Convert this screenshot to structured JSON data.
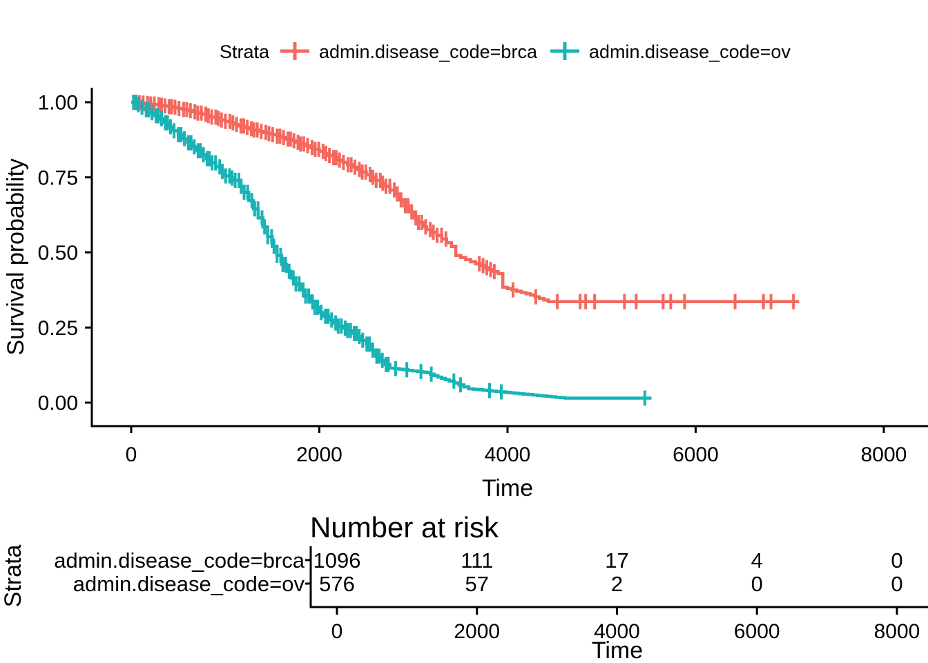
{
  "chart_data": {
    "type": "line",
    "subtype": "kaplan_meier_survival_step",
    "title": "",
    "legend_title": "Strata",
    "xlabel": "Time",
    "ylabel": "Survival probability",
    "xlim": [
      0,
      8000
    ],
    "ylim": [
      0,
      1
    ],
    "xticks": [
      0,
      2000,
      4000,
      6000,
      8000
    ],
    "xtick_labels": [
      "0",
      "2000",
      "4000",
      "6000",
      "8000"
    ],
    "yticks": [
      0,
      0.25,
      0.5,
      0.75,
      1
    ],
    "ytick_labels": [
      "0.00",
      "0.25",
      "0.50",
      "0.75",
      "1.00"
    ],
    "grid": false,
    "legend_position": "top",
    "axis_color": "#000000",
    "background": "#FFFFFF",
    "series": [
      {
        "name": "admin.disease_code=brca",
        "color": "#F4685E",
        "steps": [
          [
            0,
            1.0
          ],
          [
            150,
            0.996
          ],
          [
            300,
            0.99
          ],
          [
            450,
            0.983
          ],
          [
            600,
            0.972
          ],
          [
            750,
            0.96
          ],
          [
            900,
            0.946
          ],
          [
            1050,
            0.931
          ],
          [
            1200,
            0.916
          ],
          [
            1350,
            0.903
          ],
          [
            1500,
            0.892
          ],
          [
            1650,
            0.877
          ],
          [
            1800,
            0.861
          ],
          [
            1950,
            0.843
          ],
          [
            2100,
            0.823
          ],
          [
            2250,
            0.8
          ],
          [
            2400,
            0.776
          ],
          [
            2550,
            0.75
          ],
          [
            2700,
            0.72
          ],
          [
            2800,
            0.695
          ],
          [
            2900,
            0.655
          ],
          [
            3000,
            0.615
          ],
          [
            3100,
            0.585
          ],
          [
            3180,
            0.567
          ],
          [
            3250,
            0.557
          ],
          [
            3404,
            0.52
          ],
          [
            3450,
            0.49
          ],
          [
            3660,
            0.462
          ],
          [
            3900,
            0.43
          ],
          [
            3950,
            0.384
          ],
          [
            4245,
            0.358
          ],
          [
            4435,
            0.336
          ],
          [
            7100,
            0.336
          ]
        ],
        "censor_times": [
          3346,
          3700,
          3740,
          3780,
          3820,
          3860,
          4059,
          4300,
          4530,
          4772,
          4831,
          4926,
          5243,
          5368,
          5654,
          5735,
          5882,
          6419,
          6721,
          6801,
          7040
        ],
        "dense_censoring": {
          "from": 25,
          "to": 3300,
          "step": 38
        }
      },
      {
        "name": "admin.disease_code=ov",
        "color": "#19B3B6",
        "steps": [
          [
            0,
            1.0
          ],
          [
            150,
            0.975
          ],
          [
            300,
            0.945
          ],
          [
            450,
            0.905
          ],
          [
            600,
            0.865
          ],
          [
            750,
            0.825
          ],
          [
            900,
            0.785
          ],
          [
            1000,
            0.755
          ],
          [
            1100,
            0.74
          ],
          [
            1200,
            0.7
          ],
          [
            1300,
            0.645
          ],
          [
            1400,
            0.585
          ],
          [
            1500,
            0.52
          ],
          [
            1600,
            0.46
          ],
          [
            1700,
            0.415
          ],
          [
            1800,
            0.375
          ],
          [
            1900,
            0.335
          ],
          [
            2000,
            0.3
          ],
          [
            2100,
            0.275
          ],
          [
            2200,
            0.255
          ],
          [
            2300,
            0.24
          ],
          [
            2400,
            0.22
          ],
          [
            2500,
            0.195
          ],
          [
            2600,
            0.155
          ],
          [
            2700,
            0.127
          ],
          [
            2750,
            0.115
          ],
          [
            3140,
            0.1
          ],
          [
            3260,
            0.085
          ],
          [
            3380,
            0.072
          ],
          [
            3588,
            0.046
          ],
          [
            4610,
            0.015
          ],
          [
            5530,
            0.015
          ]
        ],
        "censor_times": [
          2810,
          2930,
          3080,
          3190,
          3430,
          3500,
          3809,
          3934,
          5460
        ],
        "dense_censoring": {
          "from": 25,
          "to": 2740,
          "step": 34
        }
      }
    ]
  },
  "risk_table": {
    "title": "Number at risk",
    "axis_label": "Strata",
    "xlabel": "Time",
    "xticks": [
      0,
      2000,
      4000,
      6000,
      8000
    ],
    "xtick_labels": [
      "0",
      "2000",
      "4000",
      "6000",
      "8000"
    ],
    "rows": [
      {
        "label": "admin.disease_code=brca",
        "color": "#F4685E",
        "values": [
          "1096",
          "111",
          "17",
          "4",
          "0"
        ]
      },
      {
        "label": "admin.disease_code=ov",
        "color": "#19B3B6",
        "values": [
          "576",
          "57",
          "2",
          "0",
          "0"
        ]
      }
    ]
  }
}
